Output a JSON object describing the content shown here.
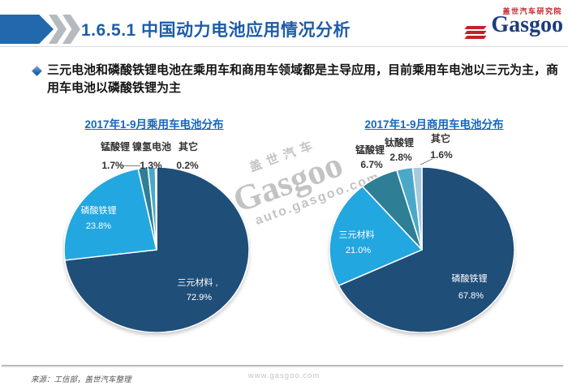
{
  "header": {
    "title": "1.6.5.1 中国动力电池应用情况分析",
    "logo": {
      "subtitle": "盖世汽车研究院",
      "brand": "Gasgoo"
    }
  },
  "bullet": {
    "text": "三元电池和磷酸铁锂电池在乘用车和商用车领域都是主导应用，目前乘用车电池以三元为主，商用车电池以磷酸铁锂为主"
  },
  "watermark": {
    "line1": "盖世汽车",
    "brand": "Gasgoo",
    "line2": "auto.gasgoo.com"
  },
  "chart_data": [
    {
      "type": "pie",
      "title": "2017年1-9月乘用车电池分布",
      "start_angle": "top",
      "direction": "clockwise",
      "label_style": "large slices labeled inside in white, small slices labeled outside in black",
      "slices": [
        {
          "name": "三元材料",
          "display_name": "三元材料 ,",
          "value": 72.9,
          "pct": "72.9%",
          "color": "#1f4e79"
        },
        {
          "name": "磷酸铁锂",
          "value": 23.8,
          "pct": "23.8%",
          "color": "#22a7e0"
        },
        {
          "name": "锰酸锂",
          "value": 1.7,
          "pct": "1.7%",
          "color": "#2e7e95"
        },
        {
          "name": "镍氢电池",
          "value": 1.3,
          "pct": "1.3%",
          "color": "#4aa9c8"
        },
        {
          "name": "其它",
          "value": 0.2,
          "pct": "0.2%",
          "color": "#c9ced3"
        }
      ]
    },
    {
      "type": "pie",
      "title": "2017年1-9月商用车电池分布",
      "start_angle": "top",
      "direction": "clockwise",
      "label_style": "large slices labeled inside in white, small slices labeled outside in black",
      "slices": [
        {
          "name": "磷酸铁锂",
          "value": 67.8,
          "pct": "67.8%",
          "color": "#1f4e79"
        },
        {
          "name": "三元材料",
          "value": 21.0,
          "pct": "21.0%",
          "color": "#22a7e0"
        },
        {
          "name": "锰酸锂",
          "value": 6.7,
          "pct": "6.7%",
          "color": "#2e7e95"
        },
        {
          "name": "钛酸锂",
          "value": 2.8,
          "pct": "2.8%",
          "color": "#4aa9c8"
        },
        {
          "name": "其它",
          "value": 1.6,
          "pct": "1.6%",
          "color": "#a7c9dd"
        }
      ]
    }
  ],
  "footer": {
    "source": "来源：工信部，盖世汽车整理",
    "site": "www.gasgoo.com"
  }
}
